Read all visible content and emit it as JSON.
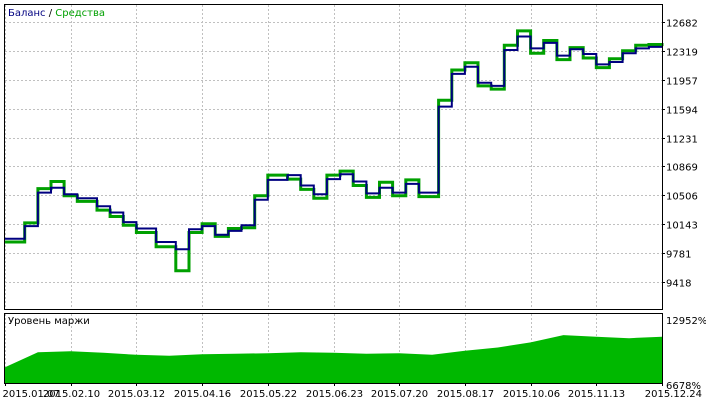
{
  "legend": {
    "balance_label": "Баланс",
    "separator": " / ",
    "equity_label": "Средства"
  },
  "margin_panel": {
    "title": "Уровень маржи",
    "y_max_label": "12952%",
    "y_min_label": "6678%",
    "fill_color": "#00b800"
  },
  "chart_data": {
    "type": "line",
    "title": "",
    "xlabel": "",
    "ylabel": "",
    "ylim": [
      9418,
      12800
    ],
    "y_ticks": [
      "12682",
      "12319",
      "11957",
      "11594",
      "11231",
      "10869",
      "10506",
      "10143",
      "9781",
      "9418"
    ],
    "x_tick_labels": [
      "2015.01.07",
      "2015.02.10",
      "2015.03.12",
      "2015.04.16",
      "2015.05.22",
      "2015.06.23",
      "2015.07.20",
      "2015.08.17",
      "2015.10.06",
      "2015.11.13",
      "2015.12.24"
    ],
    "grid": true,
    "legend_position": "top-left",
    "series": [
      {
        "name": "Баланс",
        "color": "#000080",
        "x": [
          0,
          3,
          5,
          7,
          9,
          11,
          14,
          16,
          18,
          20,
          23,
          26,
          28,
          30,
          32,
          34,
          36,
          38,
          40,
          43,
          45,
          47,
          49,
          51,
          53,
          55,
          57,
          59,
          61,
          63,
          66,
          68,
          70,
          72,
          74,
          76,
          78,
          80,
          82,
          84,
          86,
          88,
          90,
          92,
          94,
          96,
          98,
          100
        ],
        "values": [
          9960,
          10120,
          10540,
          10600,
          10520,
          10470,
          10370,
          10290,
          10170,
          10090,
          9920,
          9830,
          10080,
          10120,
          10010,
          10060,
          10130,
          10450,
          10700,
          10760,
          10630,
          10520,
          10710,
          10770,
          10680,
          10530,
          10600,
          10540,
          10650,
          10540,
          11620,
          12030,
          12120,
          11920,
          11880,
          12330,
          12500,
          12350,
          12420,
          12260,
          12340,
          12280,
          12150,
          12180,
          12290,
          12350,
          12370,
          12360
        ]
      },
      {
        "name": "Средства",
        "color": "#00a000",
        "x": [
          0,
          3,
          5,
          7,
          9,
          11,
          14,
          16,
          18,
          20,
          23,
          26,
          28,
          30,
          32,
          34,
          36,
          38,
          40,
          43,
          45,
          47,
          49,
          51,
          53,
          55,
          57,
          59,
          61,
          63,
          66,
          68,
          70,
          72,
          74,
          76,
          78,
          80,
          82,
          84,
          86,
          88,
          90,
          92,
          94,
          96,
          98,
          100
        ],
        "values": [
          9920,
          10160,
          10590,
          10680,
          10500,
          10430,
          10320,
          10240,
          10130,
          10040,
          9860,
          9560,
          10040,
          10150,
          9990,
          10090,
          10100,
          10500,
          10760,
          10710,
          10580,
          10470,
          10760,
          10810,
          10630,
          10480,
          10670,
          10500,
          10700,
          10490,
          11700,
          12080,
          12170,
          11880,
          11840,
          12390,
          12570,
          12290,
          12450,
          12210,
          12360,
          12230,
          12110,
          12220,
          12320,
          12390,
          12400,
          12380
        ]
      }
    ],
    "margin_level": {
      "ylim": [
        6678,
        12952
      ],
      "x": [
        0,
        5,
        10,
        15,
        20,
        25,
        30,
        35,
        40,
        45,
        50,
        55,
        60,
        65,
        70,
        75,
        80,
        85,
        90,
        95,
        100
      ],
      "values": [
        8200,
        9650,
        9750,
        9600,
        9400,
        9300,
        9450,
        9500,
        9550,
        9650,
        9600,
        9500,
        9550,
        9400,
        9800,
        10100,
        10600,
        11300,
        11150,
        11000,
        11150
      ]
    }
  }
}
